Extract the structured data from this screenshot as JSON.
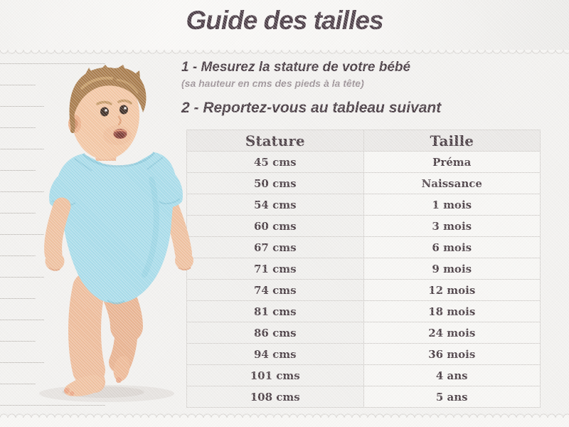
{
  "header": {
    "title": "Guide des tailles"
  },
  "instructions": {
    "step1": {
      "label": "1 - Mesurez la stature de votre bébé",
      "note": "(sa hauteur en cms des pieds à la tête)"
    },
    "step2": {
      "label": "2 - Reportez-vous au tableau suivant"
    }
  },
  "size_table": {
    "columns": [
      "Stature",
      "Taille"
    ],
    "rows": [
      [
        "45 cms",
        "Préma"
      ],
      [
        "50 cms",
        "Naissance"
      ],
      [
        "54 cms",
        "1 mois"
      ],
      [
        "60 cms",
        "3 mois"
      ],
      [
        "67 cms",
        "6 mois"
      ],
      [
        "71 cms",
        "9 mois"
      ],
      [
        "74 cms",
        "12 mois"
      ],
      [
        "81 cms",
        "18 mois"
      ],
      [
        "86 cms",
        "24 mois"
      ],
      [
        "94 cms",
        "36 mois"
      ],
      [
        "101 cms",
        "4 ans"
      ],
      [
        "108 cms",
        "5 ans"
      ]
    ]
  },
  "illustration": {
    "name": "toddler-in-light-blue-bodysuit"
  },
  "colors": {
    "title_text": "#4c3e47",
    "step_text": "#473b42",
    "note_text": "#9b9196",
    "table_text": "#4a3e44",
    "onesie_blue": "#a9dcea"
  }
}
